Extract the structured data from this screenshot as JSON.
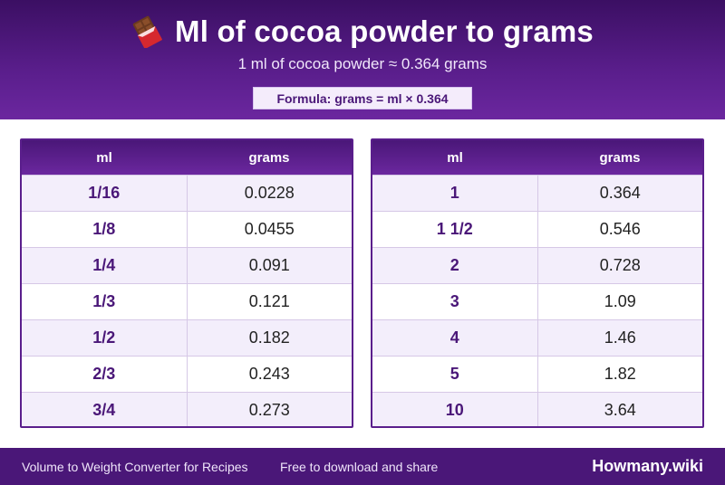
{
  "header": {
    "icon": "chocolate-bar-icon",
    "title": "Ml of cocoa powder to grams",
    "subtitle": "1 ml of cocoa powder ≈ 0.364 grams",
    "formula": "Formula: grams = ml × 0.364"
  },
  "colors": {
    "header_dark": "#3b0f63",
    "header_light": "#6b279f",
    "accent": "#4a1778",
    "row_alt": "#f3eefb"
  },
  "tables": {
    "left": {
      "col1": "ml",
      "col2": "grams",
      "rows": [
        {
          "ml": "1/16",
          "grams": "0.0228"
        },
        {
          "ml": "1/8",
          "grams": "0.0455"
        },
        {
          "ml": "1/4",
          "grams": "0.091"
        },
        {
          "ml": "1/3",
          "grams": "0.121"
        },
        {
          "ml": "1/2",
          "grams": "0.182"
        },
        {
          "ml": "2/3",
          "grams": "0.243"
        },
        {
          "ml": "3/4",
          "grams": "0.273"
        }
      ]
    },
    "right": {
      "col1": "ml",
      "col2": "grams",
      "rows": [
        {
          "ml": "1",
          "grams": "0.364"
        },
        {
          "ml": "1 1/2",
          "grams": "0.546"
        },
        {
          "ml": "2",
          "grams": "0.728"
        },
        {
          "ml": "3",
          "grams": "1.09"
        },
        {
          "ml": "4",
          "grams": "1.46"
        },
        {
          "ml": "5",
          "grams": "1.82"
        },
        {
          "ml": "10",
          "grams": "3.64"
        }
      ]
    }
  },
  "footer": {
    "left": "Volume to Weight Converter for Recipes",
    "middle": "Free to download and share",
    "brand": "Howmany.wiki"
  }
}
